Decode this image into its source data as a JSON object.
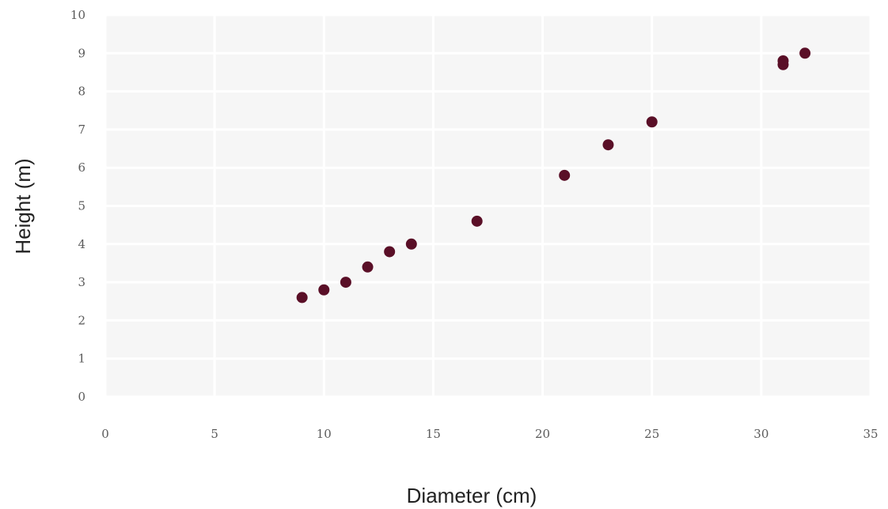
{
  "chart_data": {
    "type": "scatter",
    "title": "",
    "xlabel": "Diameter (cm)",
    "ylabel": "Height (m)",
    "xlim": [
      0,
      35
    ],
    "ylim": [
      0,
      10
    ],
    "xticks": [
      0,
      5,
      10,
      15,
      20,
      25,
      30,
      35
    ],
    "yticks": [
      0,
      1,
      2,
      3,
      4,
      5,
      6,
      7,
      8,
      9,
      10
    ],
    "grid": true,
    "legend": "none",
    "marker_color": "#5a0f27",
    "series": [
      {
        "x": [
          9,
          10,
          11,
          12,
          13,
          14,
          17,
          21,
          23,
          25,
          31,
          31,
          32
        ],
        "y": [
          2.6,
          2.8,
          3.0,
          3.4,
          3.8,
          4.0,
          4.6,
          5.8,
          6.6,
          7.2,
          8.7,
          8.8,
          9.0
        ]
      }
    ]
  }
}
